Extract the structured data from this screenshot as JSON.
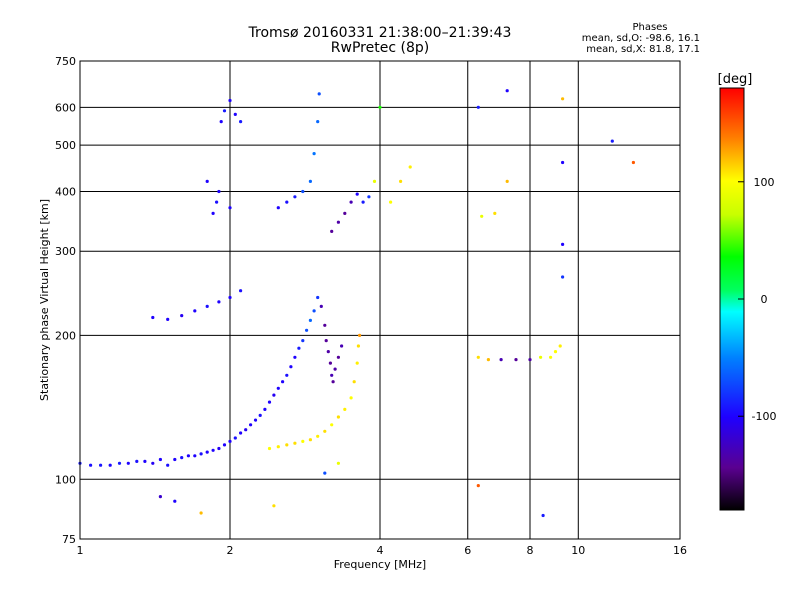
{
  "header": {
    "title": "Tromsø 20160331 21:38:00–21:39:43",
    "subtitle": "RwPretec (8p)"
  },
  "stats": {
    "heading": "Phases",
    "line_o": "mean, sd,O: -98.6, 16.1",
    "line_x": "mean, sd,X: 81.8, 17.1"
  },
  "colorbar": {
    "unit_label": "[deg]",
    "range": [
      -180,
      180
    ],
    "ticks": [
      {
        "value": 100,
        "label": "100"
      },
      {
        "value": 0,
        "label": "0"
      },
      {
        "value": -100,
        "label": "-100"
      }
    ]
  },
  "chart_data": {
    "type": "scatter",
    "title": "Tromsø 20160331 21:38:00–21:39:43",
    "subtitle": "RwPretec (8p)",
    "xlabel": "Frequency [MHz]",
    "ylabel": "Stationary phase Virtual Height [km]",
    "xscale": "log",
    "yscale": "log",
    "xlim": [
      1,
      16
    ],
    "ylim": [
      75,
      750
    ],
    "grid": true,
    "x_ticks": [
      {
        "value": 1,
        "label": "1"
      },
      {
        "value": 2,
        "label": "2"
      },
      {
        "value": 4,
        "label": "4"
      },
      {
        "value": 6,
        "label": "6"
      },
      {
        "value": 8,
        "label": "8"
      },
      {
        "value": 10,
        "label": "10"
      },
      {
        "value": 16,
        "label": "16"
      }
    ],
    "x_grid": [
      2,
      4,
      6,
      8,
      10
    ],
    "y_ticks": [
      {
        "value": 75,
        "label": "75"
      },
      {
        "value": 100,
        "label": "100"
      },
      {
        "value": 200,
        "label": "200"
      },
      {
        "value": 300,
        "label": "300"
      },
      {
        "value": 400,
        "label": "400"
      },
      {
        "value": 500,
        "label": "500"
      },
      {
        "value": 600,
        "label": "600"
      },
      {
        "value": 750,
        "label": "750"
      }
    ],
    "y_grid": [
      100,
      200,
      300,
      400,
      500,
      600
    ],
    "color_variable": "phase [deg]",
    "color_range": [
      -180,
      180
    ],
    "series": [
      {
        "points": [
          {
            "x": 1.0,
            "y": 108,
            "c": -90
          },
          {
            "x": 1.05,
            "y": 107,
            "c": -95
          },
          {
            "x": 1.1,
            "y": 107,
            "c": -92
          },
          {
            "x": 1.15,
            "y": 107,
            "c": -98
          },
          {
            "x": 1.2,
            "y": 108,
            "c": -90
          },
          {
            "x": 1.25,
            "y": 108,
            "c": -100
          },
          {
            "x": 1.3,
            "y": 109,
            "c": -95
          },
          {
            "x": 1.35,
            "y": 109,
            "c": -100
          },
          {
            "x": 1.4,
            "y": 108,
            "c": -105
          },
          {
            "x": 1.45,
            "y": 110,
            "c": -100
          },
          {
            "x": 1.5,
            "y": 107,
            "c": -95
          },
          {
            "x": 1.55,
            "y": 110,
            "c": -100
          },
          {
            "x": 1.6,
            "y": 111,
            "c": -95
          },
          {
            "x": 1.65,
            "y": 112,
            "c": -100
          },
          {
            "x": 1.7,
            "y": 112,
            "c": -100
          },
          {
            "x": 1.75,
            "y": 113,
            "c": -95
          },
          {
            "x": 1.8,
            "y": 114,
            "c": -100
          },
          {
            "x": 1.85,
            "y": 115,
            "c": -100
          },
          {
            "x": 1.9,
            "y": 116,
            "c": -105
          },
          {
            "x": 1.95,
            "y": 118,
            "c": -100
          },
          {
            "x": 2.0,
            "y": 120,
            "c": -100
          },
          {
            "x": 2.05,
            "y": 122,
            "c": -95
          },
          {
            "x": 2.1,
            "y": 125,
            "c": -100
          },
          {
            "x": 2.15,
            "y": 127,
            "c": -105
          },
          {
            "x": 2.2,
            "y": 130,
            "c": -100
          },
          {
            "x": 2.25,
            "y": 133,
            "c": -100
          },
          {
            "x": 2.3,
            "y": 136,
            "c": -95
          },
          {
            "x": 2.35,
            "y": 140,
            "c": -100
          },
          {
            "x": 2.4,
            "y": 145,
            "c": -100
          },
          {
            "x": 2.45,
            "y": 150,
            "c": -105
          },
          {
            "x": 2.5,
            "y": 155,
            "c": -100
          },
          {
            "x": 2.55,
            "y": 160,
            "c": -100
          },
          {
            "x": 2.6,
            "y": 165,
            "c": -95
          },
          {
            "x": 2.65,
            "y": 172,
            "c": -100
          },
          {
            "x": 2.7,
            "y": 180,
            "c": -100
          },
          {
            "x": 2.75,
            "y": 188,
            "c": -90
          },
          {
            "x": 2.8,
            "y": 195,
            "c": -80
          },
          {
            "x": 2.85,
            "y": 205,
            "c": -70
          },
          {
            "x": 2.9,
            "y": 215,
            "c": -60
          },
          {
            "x": 2.95,
            "y": 225,
            "c": -70
          },
          {
            "x": 3.0,
            "y": 240,
            "c": -80
          }
        ]
      },
      {
        "points": [
          {
            "x": 3.05,
            "y": 230,
            "c": -130
          },
          {
            "x": 3.1,
            "y": 210,
            "c": -140
          },
          {
            "x": 3.12,
            "y": 195,
            "c": -140
          },
          {
            "x": 3.15,
            "y": 185,
            "c": -135
          },
          {
            "x": 3.18,
            "y": 175,
            "c": -140
          },
          {
            "x": 3.2,
            "y": 165,
            "c": -130
          },
          {
            "x": 3.22,
            "y": 160,
            "c": -140
          },
          {
            "x": 3.25,
            "y": 170,
            "c": -135
          },
          {
            "x": 3.3,
            "y": 180,
            "c": -140
          },
          {
            "x": 3.35,
            "y": 190,
            "c": -130
          }
        ]
      },
      {
        "points": [
          {
            "x": 2.4,
            "y": 116,
            "c": 100
          },
          {
            "x": 2.5,
            "y": 117,
            "c": 105
          },
          {
            "x": 2.6,
            "y": 118,
            "c": 110
          },
          {
            "x": 2.7,
            "y": 119,
            "c": 110
          },
          {
            "x": 2.8,
            "y": 120,
            "c": 100
          },
          {
            "x": 2.9,
            "y": 121,
            "c": 110
          },
          {
            "x": 3.0,
            "y": 123,
            "c": 105
          },
          {
            "x": 3.1,
            "y": 126,
            "c": 110
          },
          {
            "x": 3.2,
            "y": 130,
            "c": 100
          },
          {
            "x": 3.3,
            "y": 135,
            "c": 110
          },
          {
            "x": 3.4,
            "y": 140,
            "c": 105
          },
          {
            "x": 3.5,
            "y": 148,
            "c": 100
          },
          {
            "x": 3.55,
            "y": 160,
            "c": 110
          },
          {
            "x": 3.6,
            "y": 175,
            "c": 105
          },
          {
            "x": 3.62,
            "y": 190,
            "c": 110
          },
          {
            "x": 3.64,
            "y": 200,
            "c": 130
          }
        ]
      },
      {
        "points": [
          {
            "x": 1.4,
            "y": 218,
            "c": -100
          },
          {
            "x": 1.5,
            "y": 216,
            "c": -100
          },
          {
            "x": 1.6,
            "y": 220,
            "c": -105
          },
          {
            "x": 1.7,
            "y": 225,
            "c": -100
          },
          {
            "x": 1.8,
            "y": 230,
            "c": -95
          },
          {
            "x": 1.9,
            "y": 235,
            "c": -100
          },
          {
            "x": 2.0,
            "y": 240,
            "c": -100
          },
          {
            "x": 2.1,
            "y": 248,
            "c": -95
          }
        ]
      },
      {
        "points": [
          {
            "x": 1.85,
            "y": 360,
            "c": -100
          },
          {
            "x": 1.88,
            "y": 380,
            "c": -95
          },
          {
            "x": 1.9,
            "y": 400,
            "c": -100
          },
          {
            "x": 1.92,
            "y": 560,
            "c": -100
          },
          {
            "x": 1.95,
            "y": 590,
            "c": -90
          },
          {
            "x": 2.0,
            "y": 620,
            "c": -100
          },
          {
            "x": 2.05,
            "y": 580,
            "c": -100
          },
          {
            "x": 2.1,
            "y": 560,
            "c": -90
          },
          {
            "x": 1.8,
            "y": 420,
            "c": -100
          },
          {
            "x": 2.0,
            "y": 370,
            "c": -100
          }
        ]
      },
      {
        "points": [
          {
            "x": 2.5,
            "y": 370,
            "c": -100
          },
          {
            "x": 2.6,
            "y": 380,
            "c": -95
          },
          {
            "x": 2.7,
            "y": 390,
            "c": -90
          },
          {
            "x": 2.8,
            "y": 400,
            "c": -70
          },
          {
            "x": 2.9,
            "y": 420,
            "c": -60
          },
          {
            "x": 2.95,
            "y": 480,
            "c": -55
          },
          {
            "x": 3.0,
            "y": 560,
            "c": -60
          },
          {
            "x": 3.02,
            "y": 640,
            "c": -70
          }
        ]
      },
      {
        "points": [
          {
            "x": 3.2,
            "y": 330,
            "c": -140
          },
          {
            "x": 3.3,
            "y": 345,
            "c": -135
          },
          {
            "x": 3.4,
            "y": 360,
            "c": -140
          },
          {
            "x": 3.5,
            "y": 380,
            "c": -130
          },
          {
            "x": 3.6,
            "y": 395,
            "c": -100
          },
          {
            "x": 3.7,
            "y": 380,
            "c": -90
          },
          {
            "x": 3.8,
            "y": 390,
            "c": -80
          },
          {
            "x": 3.9,
            "y": 420,
            "c": 90
          },
          {
            "x": 4.0,
            "y": 600,
            "c": 40
          }
        ]
      },
      {
        "points": [
          {
            "x": 4.2,
            "y": 380,
            "c": 100
          },
          {
            "x": 4.4,
            "y": 420,
            "c": 110
          },
          {
            "x": 4.6,
            "y": 450,
            "c": 105
          }
        ]
      },
      {
        "points": [
          {
            "x": 6.3,
            "y": 180,
            "c": 110
          },
          {
            "x": 6.6,
            "y": 178,
            "c": 120
          },
          {
            "x": 7.0,
            "y": 178,
            "c": -130
          },
          {
            "x": 7.5,
            "y": 178,
            "c": -140
          },
          {
            "x": 8.0,
            "y": 178,
            "c": -135
          },
          {
            "x": 8.4,
            "y": 180,
            "c": 90
          },
          {
            "x": 8.8,
            "y": 180,
            "c": 100
          },
          {
            "x": 9.0,
            "y": 185,
            "c": 100
          },
          {
            "x": 9.2,
            "y": 190,
            "c": 105
          }
        ]
      },
      {
        "points": [
          {
            "x": 6.3,
            "y": 600,
            "c": -90
          },
          {
            "x": 7.2,
            "y": 650,
            "c": -100
          },
          {
            "x": 9.3,
            "y": 625,
            "c": 120
          },
          {
            "x": 11.7,
            "y": 510,
            "c": -90
          },
          {
            "x": 12.9,
            "y": 460,
            "c": 150
          },
          {
            "x": 9.3,
            "y": 460,
            "c": -100
          },
          {
            "x": 9.3,
            "y": 310,
            "c": -100
          },
          {
            "x": 9.3,
            "y": 265,
            "c": -80
          },
          {
            "x": 6.8,
            "y": 360,
            "c": 110
          },
          {
            "x": 6.4,
            "y": 355,
            "c": 90
          },
          {
            "x": 7.2,
            "y": 420,
            "c": 120
          }
        ]
      },
      {
        "points": [
          {
            "x": 1.45,
            "y": 92,
            "c": -120
          },
          {
            "x": 1.55,
            "y": 90,
            "c": -100
          },
          {
            "x": 1.75,
            "y": 85,
            "c": 120
          },
          {
            "x": 2.45,
            "y": 88,
            "c": 110
          },
          {
            "x": 6.3,
            "y": 97,
            "c": 150
          },
          {
            "x": 8.5,
            "y": 84,
            "c": -90
          },
          {
            "x": 3.3,
            "y": 108,
            "c": 90
          },
          {
            "x": 3.1,
            "y": 103,
            "c": -70
          }
        ]
      }
    ]
  }
}
